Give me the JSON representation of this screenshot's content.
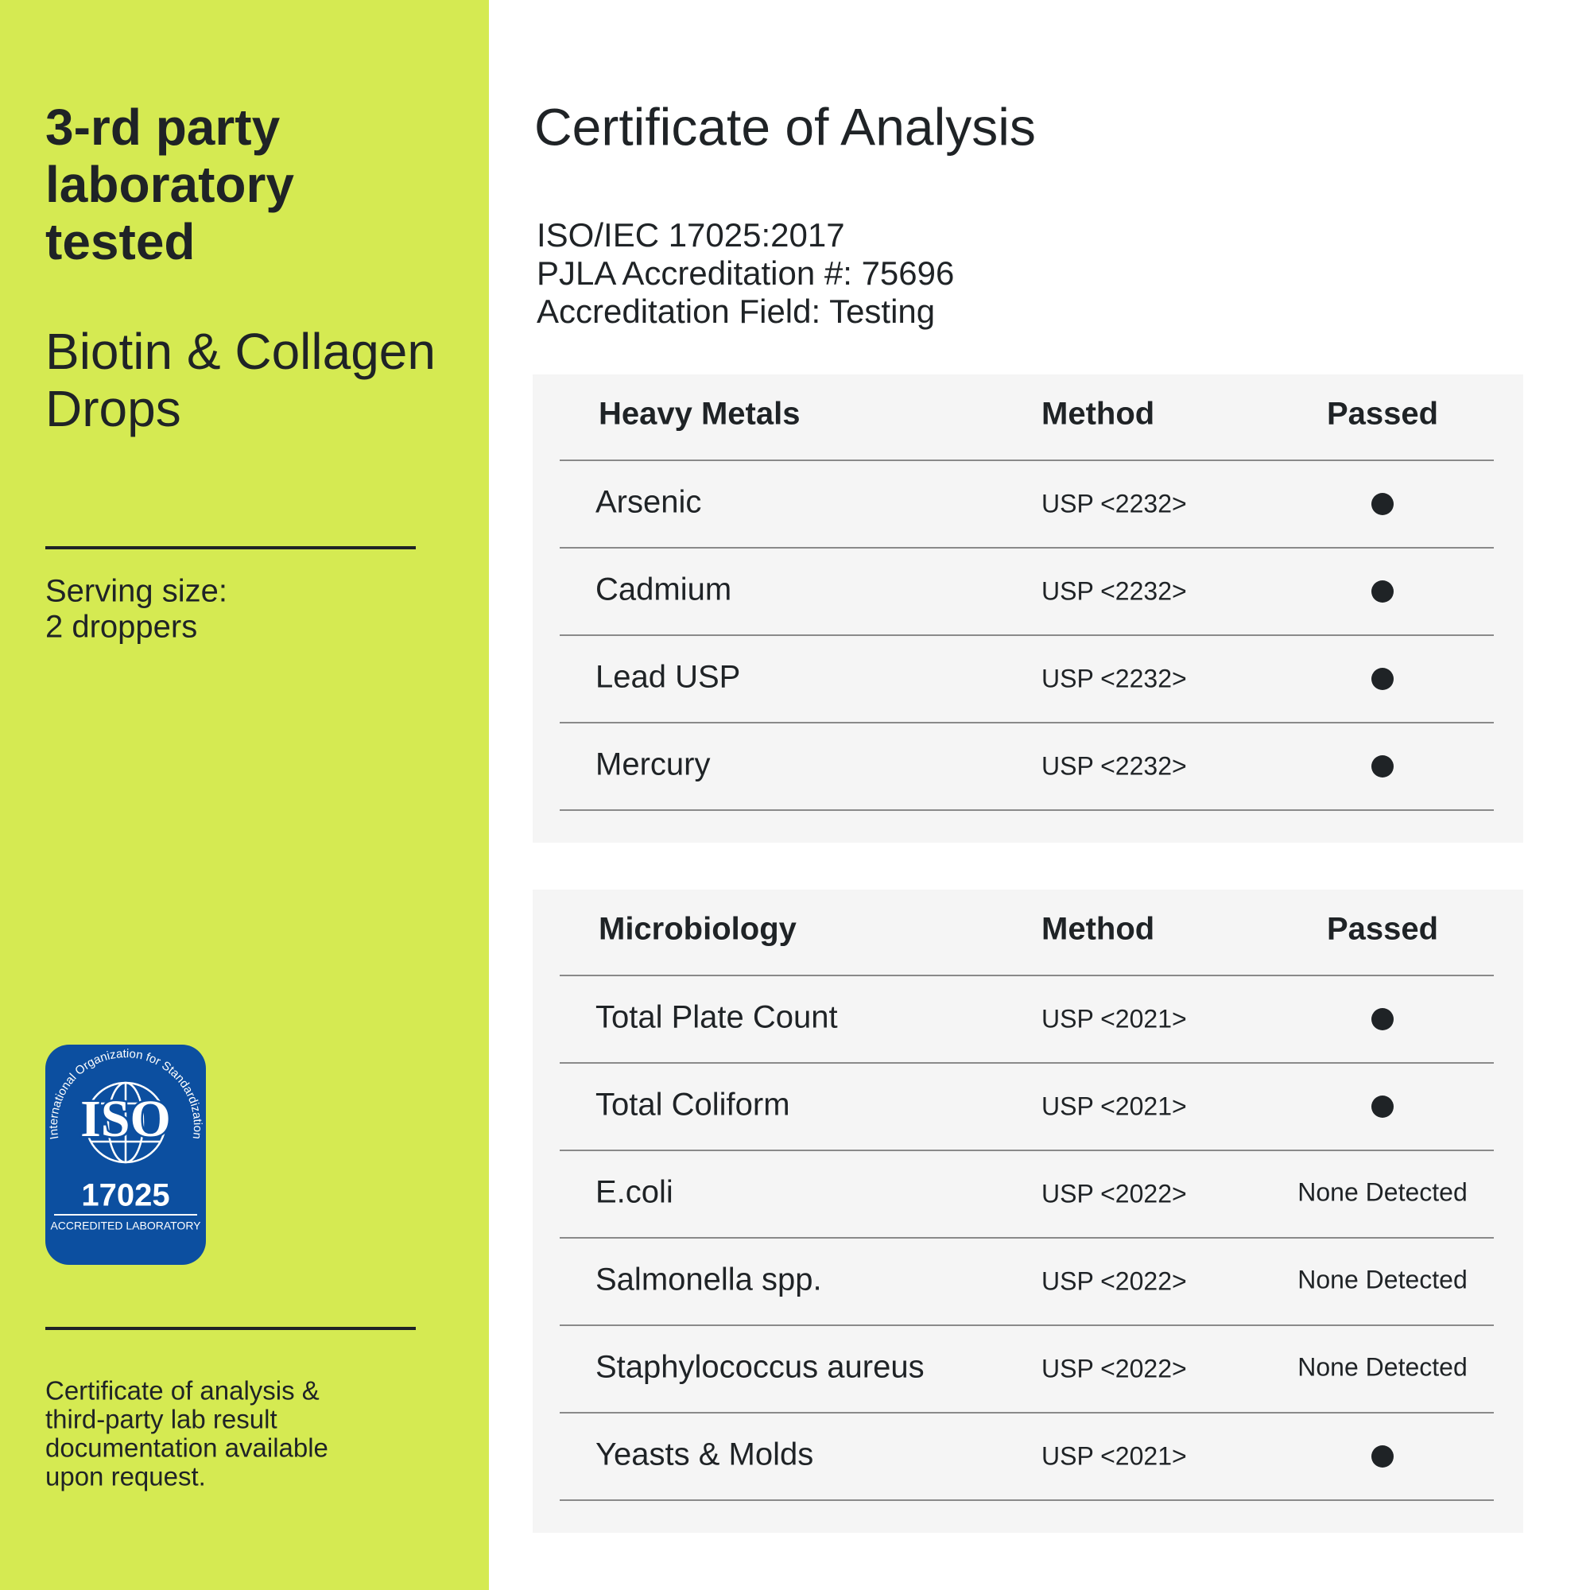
{
  "left": {
    "heading": [
      "3-rd party",
      "laboratory",
      "tested"
    ],
    "product": [
      "Biotin & Collagen",
      "Drops"
    ],
    "serving": [
      "Serving size:",
      "2 droppers"
    ],
    "badge": {
      "arc": "International Organization for Standardization",
      "logo": "ISO",
      "number": "17025",
      "caption": "ACCREDITED LABORATORY"
    },
    "note": [
      "Certificate of analysis &",
      "third-party lab result",
      "documentation available",
      "upon request."
    ]
  },
  "right": {
    "title": "Certificate of Analysis",
    "accreditation": [
      "ISO/IEC 17025:2017",
      "PJLA Accreditation #: 75696",
      "Accreditation Field: Testing"
    ],
    "tables": [
      {
        "header": [
          "Heavy Metals",
          "Method",
          "Passed"
        ],
        "rows": [
          {
            "name": "Arsenic",
            "method": "USP <2232>",
            "passed": true
          },
          {
            "name": "Cadmium",
            "method": "USP <2232>",
            "passed": true
          },
          {
            "name": "Lead USP",
            "method": "USP <2232>",
            "passed": true
          },
          {
            "name": "Mercury",
            "method": "USP <2232>",
            "passed": true
          }
        ]
      },
      {
        "header": [
          "Microbiology",
          "Method",
          "Passed"
        ],
        "rows": [
          {
            "name": "Total Plate Count",
            "method": "USP <2021>",
            "passed": true
          },
          {
            "name": "Total Coliform",
            "method": "USP <2021>",
            "passed": true
          },
          {
            "name": "E.coli",
            "method": "USP <2022>",
            "passed": "None Detected"
          },
          {
            "name": "Salmonella spp.",
            "method": "USP <2022>",
            "passed": "None Detected"
          },
          {
            "name": "Staphylococcus aureus",
            "method": "USP <2022>",
            "passed": "None Detected"
          },
          {
            "name": "Yeasts & Molds",
            "method": "USP <2021>",
            "passed": true
          }
        ]
      }
    ]
  }
}
